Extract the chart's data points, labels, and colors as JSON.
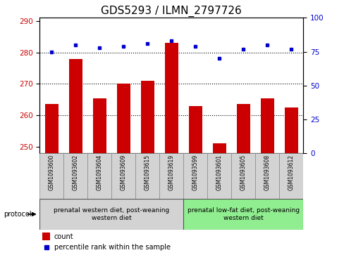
{
  "title": "GDS5293 / ILMN_2797726",
  "samples": [
    "GSM1093600",
    "GSM1093602",
    "GSM1093604",
    "GSM1093609",
    "GSM1093615",
    "GSM1093619",
    "GSM1093599",
    "GSM1093601",
    "GSM1093605",
    "GSM1093608",
    "GSM1093612"
  ],
  "counts": [
    263.5,
    278.0,
    265.5,
    270.0,
    271.0,
    283.0,
    263.0,
    251.0,
    263.5,
    265.5,
    262.5
  ],
  "percentile_ranks": [
    75,
    80,
    78,
    79,
    81,
    83,
    79,
    70,
    77,
    80,
    77
  ],
  "ylim_left": [
    248,
    291
  ],
  "ylim_right": [
    0,
    100
  ],
  "yticks_left": [
    250,
    260,
    270,
    280,
    290
  ],
  "yticks_right": [
    0,
    25,
    50,
    75,
    100
  ],
  "bar_color": "#cc0000",
  "dot_color": "#0000cc",
  "bar_bottom": 248,
  "group1_label": "prenatal western diet, post-weaning\nwestern diet",
  "group2_label": "prenatal low-fat diet, post-weaning\nwestern diet",
  "group1_count": 6,
  "group2_count": 5,
  "protocol_label": "protocol",
  "legend_count_label": "count",
  "legend_pct_label": "percentile rank within the sample",
  "title_fontsize": 11,
  "tick_fontsize": 7.5,
  "sample_fontsize": 5.5,
  "group_fontsize": 6.5,
  "legend_fontsize": 7,
  "group_bg_color1": "#d3d3d3",
  "group_bg_color2": "#90ee90",
  "plot_bg_color": "#ffffff",
  "gridline_color": "black",
  "gridline_style": "dotted",
  "gridline_lw": 0.8,
  "gridline_yticks": [
    260,
    270,
    280
  ]
}
